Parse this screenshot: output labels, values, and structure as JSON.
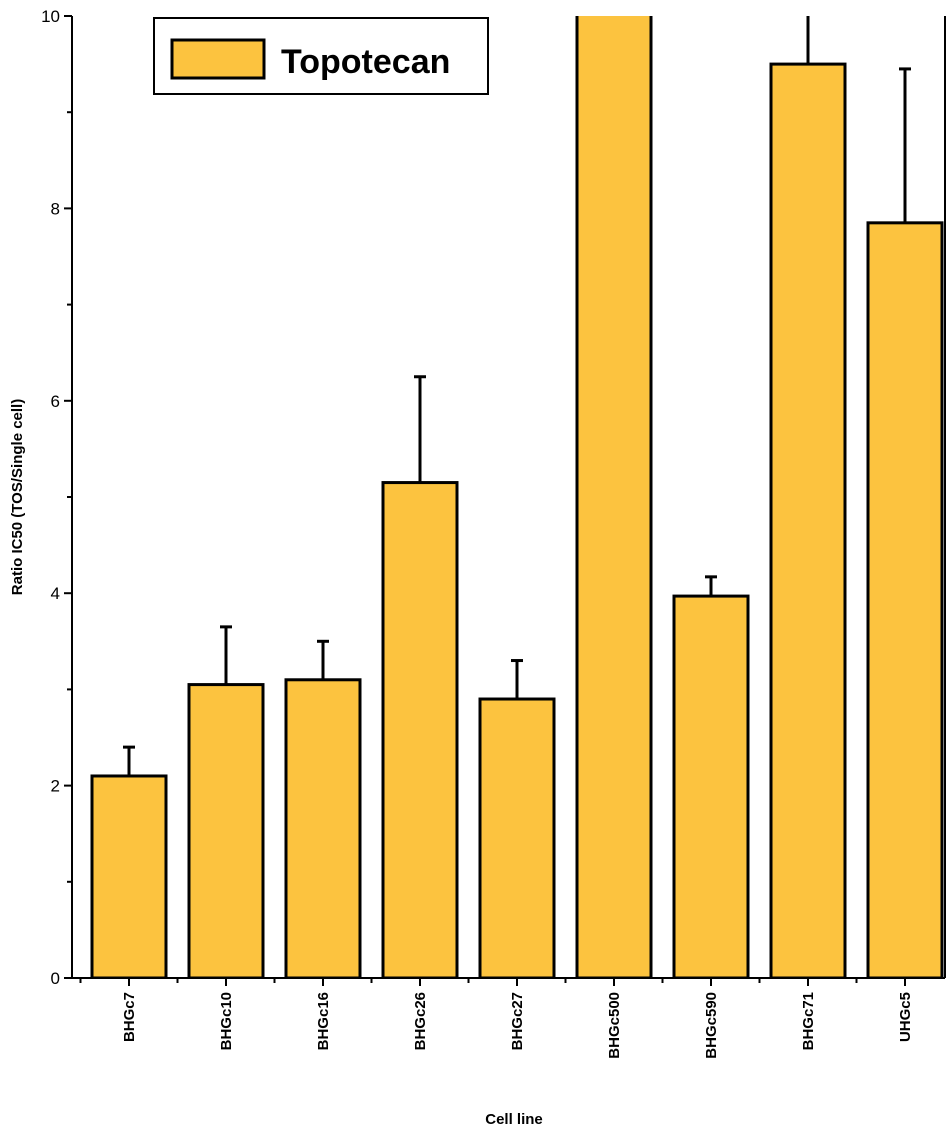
{
  "chart_data": {
    "type": "bar",
    "title": "",
    "xlabel": "Cell line",
    "ylabel": "Ratio IC50 (TOS/Single cell)",
    "ylim": [
      0,
      10
    ],
    "yticks": [
      0,
      2,
      4,
      6,
      8,
      10
    ],
    "categories": [
      "BHGc7",
      "BHGc10",
      "BHGc16",
      "BHGc26",
      "BHGc27",
      "BHGc500",
      "BHGc590",
      "BHGc71",
      "UHGc5"
    ],
    "series": [
      {
        "name": "Topotecan",
        "values": [
          2.1,
          3.05,
          3.1,
          5.15,
          2.9,
          10.5,
          3.97,
          9.5,
          7.85
        ],
        "error_plus": [
          0.3,
          0.6,
          0.4,
          1.1,
          0.4,
          0.0,
          0.2,
          0.6,
          1.6
        ]
      }
    ],
    "legend": {
      "position": "top-left",
      "label": "Topotecan"
    },
    "colors": {
      "bar_fill": "#FCC33F",
      "bar_stroke": "#000000",
      "axis": "#000000"
    }
  }
}
